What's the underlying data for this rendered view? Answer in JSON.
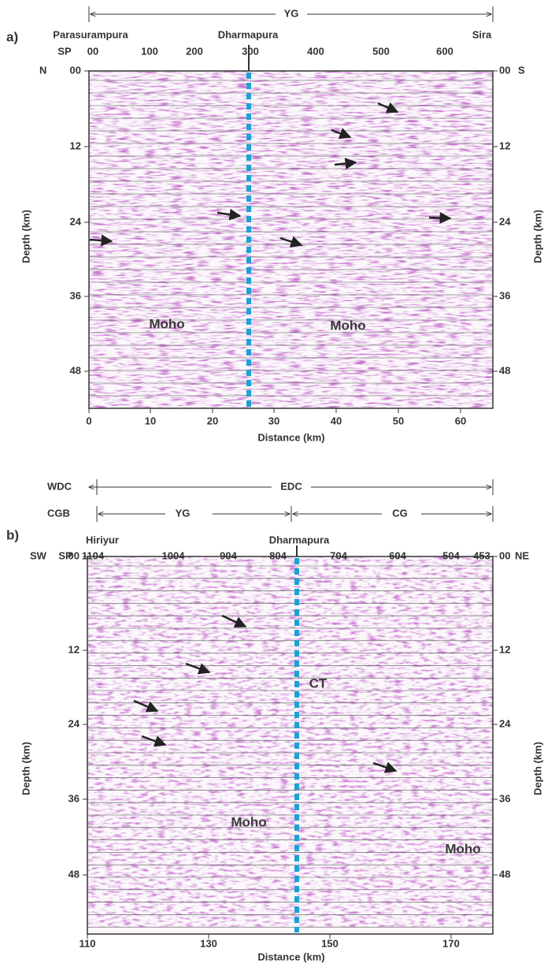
{
  "panel_a": {
    "label": "a)",
    "span_label": "YG",
    "places": [
      "Parasurampura",
      "Dharmapura",
      "Sira"
    ],
    "sp_prefix": "SP",
    "sp_ticks": [
      "00",
      "100",
      "200",
      "300",
      "400",
      "500",
      "600"
    ],
    "left_dir": "N",
    "right_dir": "S",
    "depth_ticks": [
      "00",
      "12",
      "24",
      "36",
      "48"
    ],
    "distance_ticks": [
      "0",
      "10",
      "20",
      "30",
      "40",
      "50",
      "60"
    ],
    "y_axis_label": "Depth (km)",
    "x_axis_label": "Distance (km)",
    "annotations": [
      "Moho",
      "Moho"
    ]
  },
  "panel_b": {
    "label": "b)",
    "spans": [
      {
        "left": "WDC",
        "label": "EDC"
      },
      {
        "left": "CGB",
        "label": "YG"
      },
      {
        "label": "CG"
      }
    ],
    "places": [
      "Hiriyur",
      "Dharmapura"
    ],
    "sp_prefix": "SP",
    "sp_ticks": [
      "1104",
      "1004",
      "904",
      "804",
      "704",
      "604",
      "504",
      "453"
    ],
    "left_dir": "SW",
    "right_dir": "NE",
    "depth_ticks": [
      "00",
      "12",
      "24",
      "36",
      "48"
    ],
    "distance_ticks": [
      "110",
      "130",
      "150",
      "170"
    ],
    "y_axis_label": "Depth (km)",
    "x_axis_label": "Distance (km)",
    "annotations": [
      "CT",
      "Moho",
      "Moho"
    ]
  }
}
